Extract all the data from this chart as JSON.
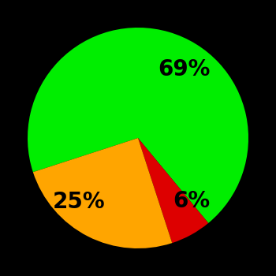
{
  "slices": [
    69,
    6,
    25
  ],
  "colors": [
    "#00ee00",
    "#dd0000",
    "#ffa500"
  ],
  "labels": [
    "69%",
    "6%",
    "25%"
  ],
  "background_color": "#000000",
  "label_fontsize": 20,
  "label_fontweight": "bold",
  "startangle": 198,
  "figsize": [
    3.5,
    3.5
  ],
  "dpi": 100
}
